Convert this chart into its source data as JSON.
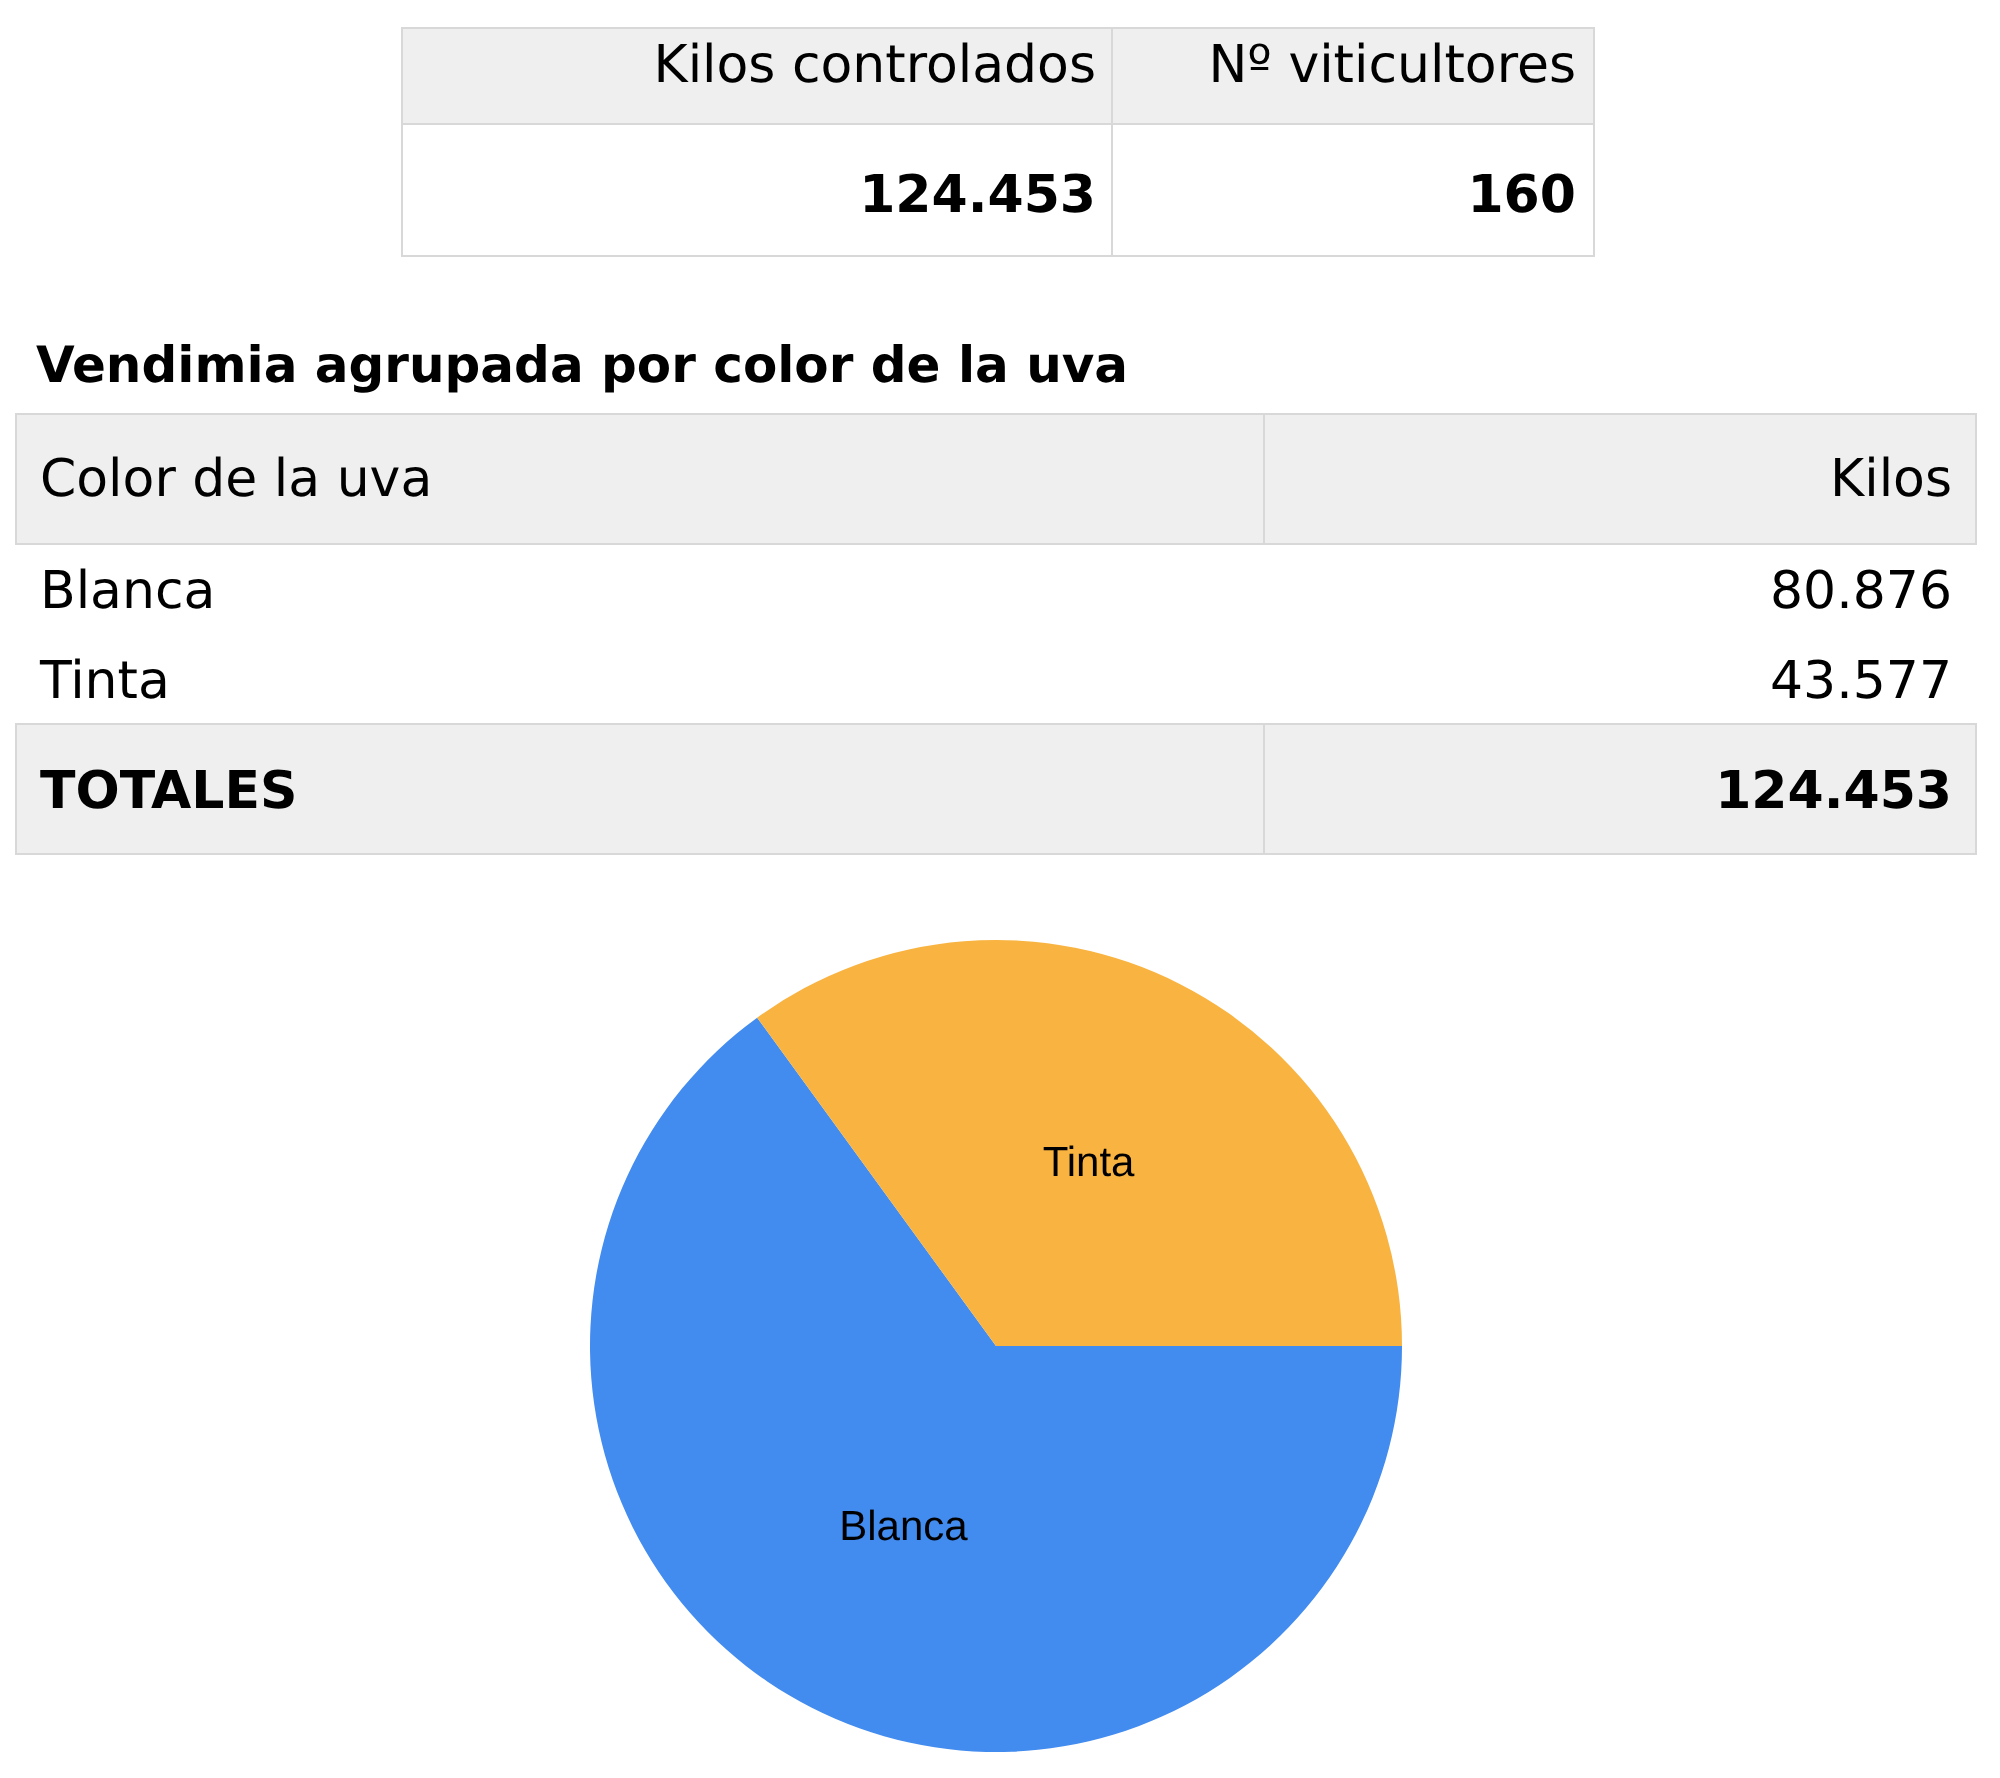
{
  "chart_data": {
    "type": "pie",
    "title": "Vendimia agrupada por color de la uva",
    "categories": [
      "Blanca",
      "Tinta"
    ],
    "values": [
      64.99,
      35.01
    ],
    "colors": [
      "#428bef",
      "#f9b340"
    ],
    "annotations": [
      "Kilos controlados",
      "124.453",
      "Nº viticultores",
      "160",
      "Color de la uva",
      "Kilos",
      "Blanca",
      "80.876",
      "Tinta",
      "43.577",
      "TOTALES",
      "124.453"
    ]
  }
}
